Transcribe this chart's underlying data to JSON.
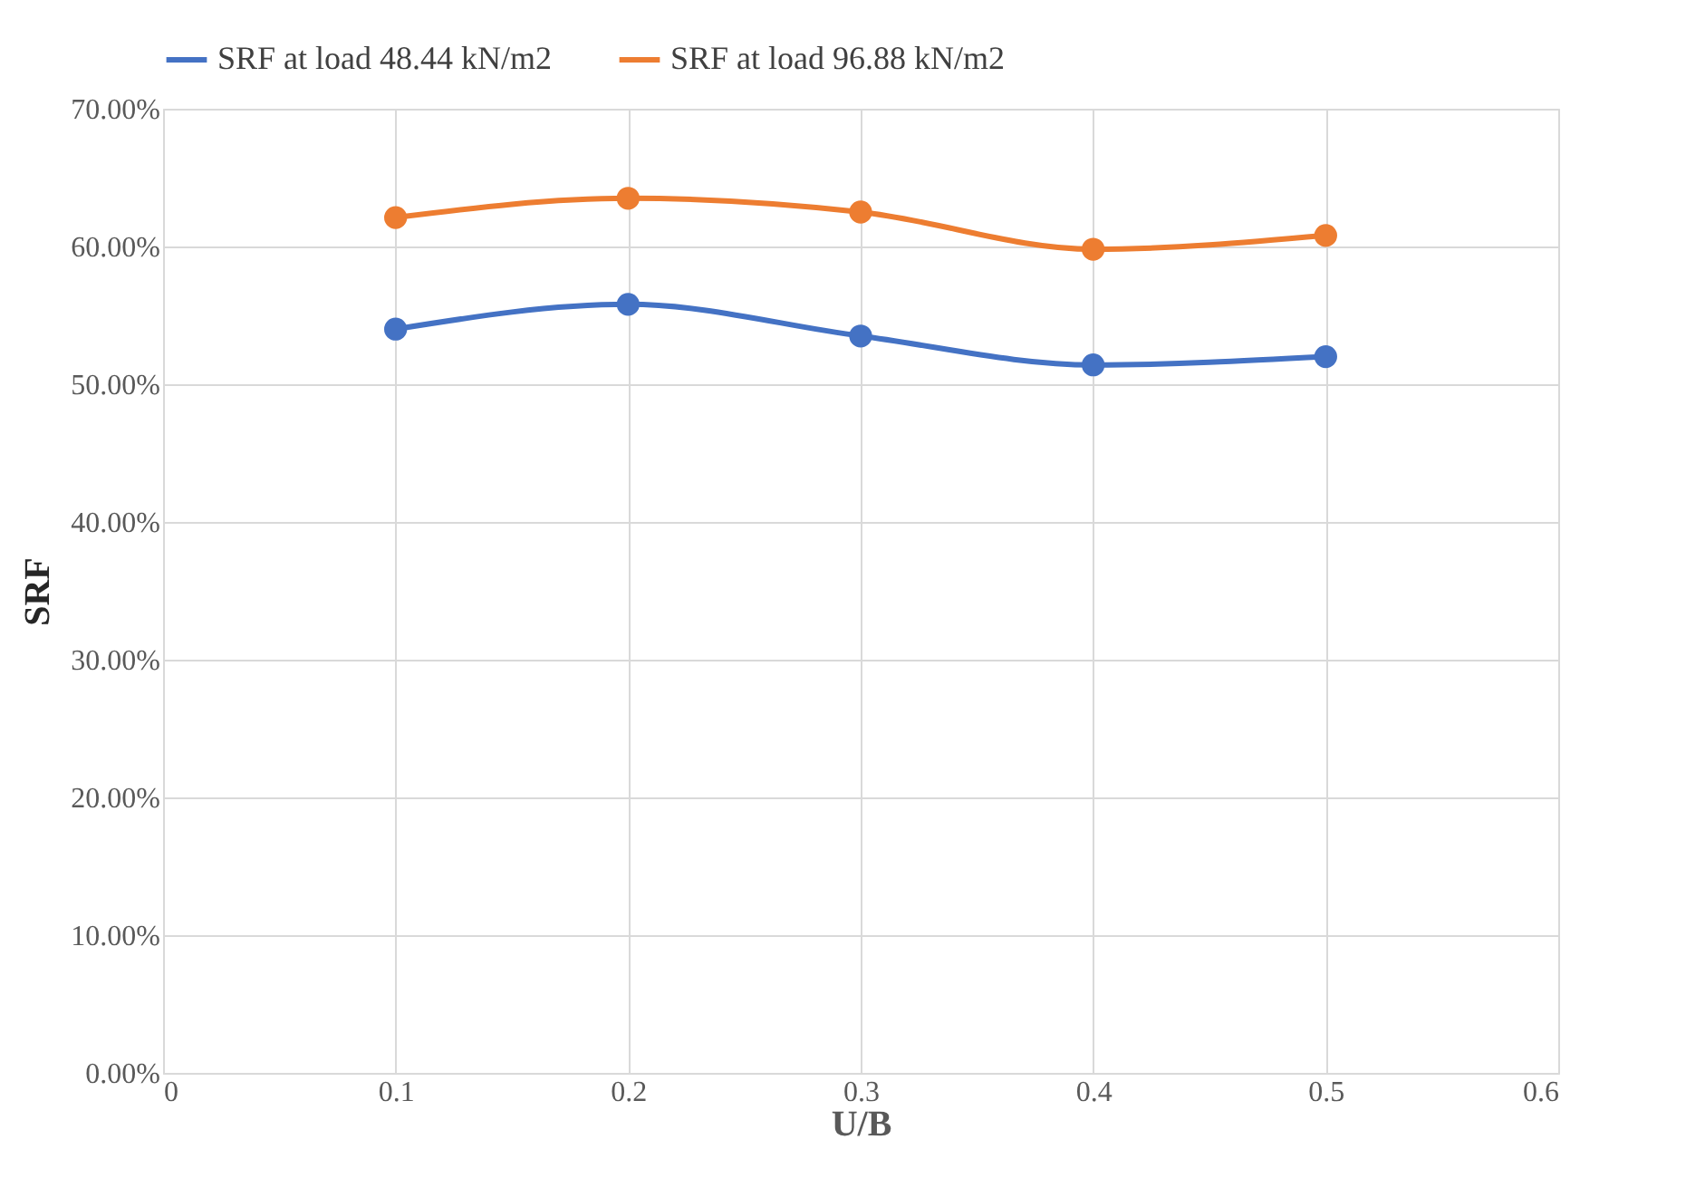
{
  "chart_data": {
    "type": "line",
    "xlabel": "U/B",
    "ylabel": "SRF",
    "x": [
      0.1,
      0.2,
      0.3,
      0.4,
      0.5
    ],
    "series": [
      {
        "name": "SRF at load 48.44 kN/m2",
        "color": "#4472c4",
        "values": [
          0.54,
          0.558,
          0.535,
          0.514,
          0.52
        ]
      },
      {
        "name": "SRF at load 96.88 kN/m2",
        "color": "#ed7d31",
        "values": [
          0.621,
          0.635,
          0.625,
          0.598,
          0.608
        ]
      }
    ],
    "xlim": [
      0,
      0.6
    ],
    "xticks": [
      0,
      0.1,
      0.2,
      0.3,
      0.4,
      0.5,
      0.6
    ],
    "ylim": [
      0,
      0.7
    ],
    "yticks": [
      {
        "value": 0,
        "label": "0.00%"
      },
      {
        "value": 0.1,
        "label": "10.00%"
      },
      {
        "value": 0.2,
        "label": "20.00%"
      },
      {
        "value": 0.3,
        "label": "30.00%"
      },
      {
        "value": 0.4,
        "label": "40.00%"
      },
      {
        "value": 0.5,
        "label": "50.00%"
      },
      {
        "value": 0.6,
        "label": "60.00%"
      },
      {
        "value": 0.7,
        "label": "70.00%"
      }
    ],
    "grid": true,
    "legend": "top",
    "marker": "circle",
    "line_style": "solid"
  }
}
